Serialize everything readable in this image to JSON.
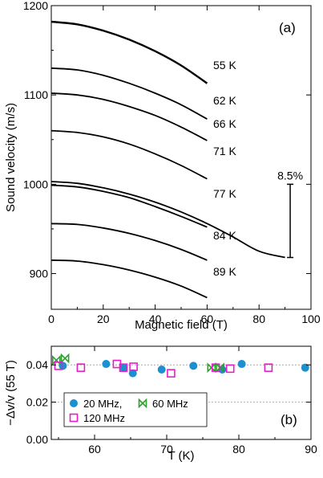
{
  "chart_data": [
    {
      "panel": "(a)",
      "type": "line",
      "xlabel": "Magnetic field (T)",
      "ylabel": "Sound velocity (m/s)",
      "xlim": [
        0,
        100
      ],
      "ylim": [
        860,
        1200
      ],
      "xticks": [
        "0",
        "20",
        "40",
        "60",
        "80",
        "100"
      ],
      "yticks": [
        "900",
        "1000",
        "1100",
        "1200"
      ],
      "series": [
        {
          "name": "55 K",
          "x": [
            0,
            10,
            20,
            30,
            40,
            50,
            60
          ],
          "y": [
            1182,
            1179,
            1172,
            1162,
            1149,
            1133,
            1113
          ]
        },
        {
          "name": "62 K",
          "x": [
            0,
            10,
            20,
            30,
            40,
            50,
            60
          ],
          "y": [
            1130,
            1128,
            1122,
            1113,
            1102,
            1089,
            1073
          ]
        },
        {
          "name": "66 K",
          "x": [
            0,
            10,
            20,
            30,
            40,
            50,
            60
          ],
          "y": [
            1102,
            1100,
            1095,
            1087,
            1077,
            1064,
            1049
          ]
        },
        {
          "name": "71 K",
          "x": [
            0,
            10,
            20,
            30,
            40,
            50,
            60
          ],
          "y": [
            1060,
            1058,
            1053,
            1045,
            1034,
            1021,
            1006
          ]
        },
        {
          "name": "77 K",
          "x": [
            0,
            10,
            20,
            30,
            40,
            50,
            60,
            70,
            80,
            90
          ],
          "y": [
            1003,
            1001,
            996,
            989,
            980,
            969,
            956,
            941,
            925,
            918
          ]
        },
        {
          "name": "",
          "x": [
            0,
            10,
            20,
            30,
            40,
            50,
            60
          ],
          "y": [
            999,
            997,
            992,
            985,
            975,
            964,
            952
          ]
        },
        {
          "name": "84 K",
          "x": [
            0,
            10,
            20,
            30,
            40,
            50,
            60
          ],
          "y": [
            956,
            955,
            951,
            945,
            937,
            927,
            915
          ]
        },
        {
          "name": "89 K",
          "x": [
            0,
            10,
            20,
            30,
            40,
            50,
            60
          ],
          "y": [
            915,
            914,
            910,
            904,
            896,
            886,
            873
          ]
        }
      ],
      "annotations": [
        {
          "text": "8.5%",
          "x": 92,
          "y_range": [
            918,
            1000
          ]
        }
      ]
    },
    {
      "panel": "(b)",
      "type": "scatter",
      "xlabel": "T (K)",
      "ylabel": "−Δv/v (55 T)",
      "xlim": [
        54,
        90
      ],
      "ylim": [
        0,
        0.05
      ],
      "xticks": [
        "60",
        "70",
        "80",
        "90"
      ],
      "yticks": [
        "0.00",
        "0.02",
        "0.04"
      ],
      "grid": true,
      "series": [
        {
          "name": "20 MHz,",
          "marker": "filled-circle",
          "color": "#1a8fd1",
          "x": [
            55.6,
            61.6,
            64.0,
            65.3,
            69.3,
            73.7,
            77.7,
            80.4,
            89.2
          ],
          "y": [
            0.0395,
            0.0405,
            0.0385,
            0.0355,
            0.0375,
            0.0395,
            0.0375,
            0.0405,
            0.0385
          ]
        },
        {
          "name": "60 MHz",
          "marker": "bowtie",
          "color": "#2ca02c",
          "x": [
            54.7,
            55.9,
            76.2,
            77.4
          ],
          "y": [
            0.0425,
            0.0435,
            0.0385,
            0.0385
          ]
        },
        {
          "name": "120 MHz",
          "marker": "open-square",
          "color": "#e61ec8",
          "x": [
            55.0,
            58.1,
            63.1,
            64.0,
            65.4,
            70.6,
            76.8,
            78.8,
            84.1
          ],
          "y": [
            0.0395,
            0.0385,
            0.0405,
            0.0385,
            0.039,
            0.0355,
            0.0385,
            0.038,
            0.0385
          ]
        }
      ]
    }
  ]
}
